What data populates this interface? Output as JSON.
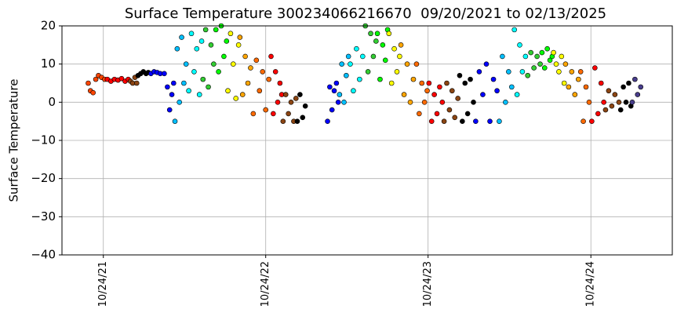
{
  "chart_data": {
    "type": "scatter",
    "title": "Surface Temperature 300234066216670  09/20/2021 to 02/13/2025",
    "y_label": "Surface Temperature",
    "xlim": [
      "2021-07-23",
      "2025-04-25"
    ],
    "xticks": [
      {
        "value": "2021-10-24",
        "label": "10/24/21"
      },
      {
        "value": "2022-10-24",
        "label": "10/24/22"
      },
      {
        "value": "2023-10-24",
        "label": "10/24/23"
      },
      {
        "value": "2024-10-24",
        "label": "10/24/24"
      }
    ],
    "ylim": [
      -40,
      20
    ],
    "yticks": [
      {
        "value": -40,
        "label": "−40"
      },
      {
        "value": -30,
        "label": "−30"
      },
      {
        "value": -20,
        "label": "−20"
      },
      {
        "value": -10,
        "label": "−10"
      },
      0,
      10,
      20
    ],
    "grid": true,
    "series": [
      {
        "color": "#ff4500",
        "x": [
          "2021-09-20",
          "2021-09-25",
          "2021-10-01",
          "2021-10-07",
          "2021-10-13",
          "2021-10-20",
          "2021-10-27"
        ],
        "values": [
          5,
          3,
          2.5,
          6,
          7,
          6.5,
          6
        ]
      },
      {
        "color": "#ff0000",
        "x": [
          "2021-11-02",
          "2021-11-10",
          "2021-11-18",
          "2021-11-26",
          "2021-12-04",
          "2021-12-12",
          "2021-12-19"
        ],
        "values": [
          6,
          5.5,
          6,
          5.8,
          6.2,
          5.5,
          6
        ]
      },
      {
        "color": "#8b4513",
        "x": [
          "2021-12-24",
          "2021-12-29",
          "2022-01-03",
          "2022-01-07"
        ],
        "values": [
          5.5,
          5,
          6.5,
          5
        ]
      },
      {
        "color": "#000000",
        "x": [
          "2022-01-10",
          "2022-01-16",
          "2022-01-22",
          "2022-01-28",
          "2022-02-02"
        ],
        "values": [
          7,
          7.5,
          8,
          7.5,
          7.8
        ]
      },
      {
        "color": "#0000ff",
        "x": [
          "2022-02-08",
          "2022-02-15",
          "2022-02-22",
          "2022-03-01",
          "2022-03-10",
          "2022-03-17",
          "2022-03-22",
          "2022-03-27",
          "2022-03-31"
        ],
        "values": [
          7.5,
          8,
          7.8,
          7.5,
          7.5,
          4,
          -2,
          2,
          5
        ]
      },
      {
        "color": "#00bfff",
        "x": [
          "2022-04-03",
          "2022-04-08",
          "2022-04-13",
          "2022-04-18",
          "2022-04-23",
          "2022-04-28"
        ],
        "values": [
          -5,
          14,
          0,
          17,
          5,
          10
        ]
      },
      {
        "color": "#00ffff",
        "x": [
          "2022-05-04",
          "2022-05-10",
          "2022-05-16",
          "2022-05-22",
          "2022-05-28",
          "2022-06-02"
        ],
        "values": [
          3,
          18,
          8,
          14,
          2,
          16
        ]
      },
      {
        "color": "#32cd32",
        "x": [
          "2022-06-05",
          "2022-06-11",
          "2022-06-17",
          "2022-06-23",
          "2022-06-29"
        ],
        "values": [
          6,
          19,
          4,
          15,
          10
        ]
      },
      {
        "color": "#00ff00",
        "x": [
          "2022-07-04",
          "2022-07-10",
          "2022-07-16",
          "2022-07-22",
          "2022-07-28"
        ],
        "values": [
          19,
          8,
          20,
          12,
          16
        ]
      },
      {
        "color": "#ffff00",
        "x": [
          "2022-07-31",
          "2022-08-06",
          "2022-08-12",
          "2022-08-18",
          "2022-08-24"
        ],
        "values": [
          3,
          18,
          10,
          1,
          15
        ]
      },
      {
        "color": "#ffa500",
        "x": [
          "2022-08-27",
          "2022-09-02",
          "2022-09-08",
          "2022-09-14",
          "2022-09-20"
        ],
        "values": [
          17,
          2,
          12,
          5,
          9
        ]
      },
      {
        "color": "#ff6a00",
        "x": [
          "2022-09-26",
          "2022-10-03",
          "2022-10-10",
          "2022-10-17",
          "2022-10-24",
          "2022-10-31"
        ],
        "values": [
          -3,
          11,
          3,
          8,
          -2,
          6
        ]
      },
      {
        "color": "#ff0000",
        "x": [
          "2022-11-05",
          "2022-11-10",
          "2022-11-15",
          "2022-11-20",
          "2022-11-25",
          "2022-11-29"
        ],
        "values": [
          12,
          -3,
          8,
          0,
          5,
          2
        ]
      },
      {
        "color": "#8b4513",
        "x": [
          "2022-12-02",
          "2022-12-08",
          "2022-12-14",
          "2022-12-20",
          "2022-12-26",
          "2022-12-31"
        ],
        "values": [
          -5,
          2,
          -3,
          0,
          -5,
          1
        ]
      },
      {
        "color": "#000000",
        "x": [
          "2023-01-03",
          "2023-01-09",
          "2023-01-15",
          "2023-01-21"
        ],
        "values": [
          -5,
          2,
          -4,
          -1
        ]
      },
      {
        "color": "#0000ff",
        "x": [
          "2023-03-12",
          "2023-03-17",
          "2023-03-22",
          "2023-03-27",
          "2023-04-01",
          "2023-04-05"
        ],
        "values": [
          -5,
          4,
          -2,
          3,
          5,
          0
        ]
      },
      {
        "color": "#00bfff",
        "x": [
          "2023-04-08",
          "2023-04-13",
          "2023-04-18",
          "2023-04-23",
          "2023-04-28"
        ],
        "values": [
          2,
          10,
          0,
          7,
          12
        ]
      },
      {
        "color": "#00ffff",
        "x": [
          "2023-05-02",
          "2023-05-09",
          "2023-05-16",
          "2023-05-23",
          "2023-05-30"
        ],
        "values": [
          10,
          3,
          14,
          6,
          12
        ]
      },
      {
        "color": "#32cd32",
        "x": [
          "2023-06-05",
          "2023-06-11",
          "2023-06-17",
          "2023-06-23",
          "2023-06-29"
        ],
        "values": [
          20,
          8,
          18,
          12,
          16
        ]
      },
      {
        "color": "#00ff00",
        "x": [
          "2023-07-02",
          "2023-07-08",
          "2023-07-14",
          "2023-07-20",
          "2023-07-25"
        ],
        "values": [
          18,
          6,
          15,
          11,
          19
        ]
      },
      {
        "color": "#ffff00",
        "x": [
          "2023-07-28",
          "2023-08-03",
          "2023-08-09",
          "2023-08-15",
          "2023-08-21"
        ],
        "values": [
          18,
          5,
          14,
          8,
          12
        ]
      },
      {
        "color": "#ffa500",
        "x": [
          "2023-08-24",
          "2023-08-31",
          "2023-09-07",
          "2023-09-14",
          "2023-09-21"
        ],
        "values": [
          15,
          2,
          10,
          0,
          6
        ]
      },
      {
        "color": "#ff6a00",
        "x": [
          "2023-09-28",
          "2023-10-04",
          "2023-10-10",
          "2023-10-16",
          "2023-10-22"
        ],
        "values": [
          10,
          -3,
          5,
          0,
          3
        ]
      },
      {
        "color": "#ff0000",
        "x": [
          "2023-10-26",
          "2023-11-01",
          "2023-11-07",
          "2023-11-13",
          "2023-11-19",
          "2023-11-25"
        ],
        "values": [
          5,
          -5,
          2,
          -3,
          4,
          0
        ]
      },
      {
        "color": "#8b4513",
        "x": [
          "2023-11-29",
          "2023-12-05",
          "2023-12-11",
          "2023-12-17",
          "2023-12-23",
          "2023-12-30"
        ],
        "values": [
          -5,
          5,
          -2,
          3,
          -4,
          1
        ]
      },
      {
        "color": "#000000",
        "x": [
          "2024-01-03",
          "2024-01-09",
          "2024-01-15",
          "2024-01-21",
          "2024-01-27",
          "2024-02-03"
        ],
        "values": [
          7,
          -5,
          5,
          -3,
          6,
          0
        ]
      },
      {
        "color": "#0000ff",
        "x": [
          "2024-02-08",
          "2024-02-16",
          "2024-02-24",
          "2024-03-03",
          "2024-03-11",
          "2024-03-19",
          "2024-03-27"
        ],
        "values": [
          -5,
          8,
          2,
          10,
          -5,
          6,
          3
        ]
      },
      {
        "color": "#00bfff",
        "x": [
          "2024-04-01",
          "2024-04-08",
          "2024-04-15",
          "2024-04-22",
          "2024-04-29"
        ],
        "values": [
          -5,
          12,
          0,
          8,
          4
        ]
      },
      {
        "color": "#00ffff",
        "x": [
          "2024-05-05",
          "2024-05-11",
          "2024-05-17",
          "2024-05-23",
          "2024-05-30"
        ],
        "values": [
          19,
          2,
          15,
          8,
          12
        ]
      },
      {
        "color": "#32cd32",
        "x": [
          "2024-06-04",
          "2024-06-11",
          "2024-06-18",
          "2024-06-25",
          "2024-07-02"
        ],
        "values": [
          7,
          13,
          9,
          12,
          10
        ]
      },
      {
        "color": "#00ff00",
        "x": [
          "2024-07-06",
          "2024-07-12",
          "2024-07-18",
          "2024-07-24",
          "2024-07-29"
        ],
        "values": [
          13,
          9,
          14,
          11,
          12
        ]
      },
      {
        "color": "#ffff00",
        "x": [
          "2024-08-01",
          "2024-08-07",
          "2024-08-13",
          "2024-08-19",
          "2024-08-25"
        ],
        "values": [
          13,
          10,
          8,
          12,
          5
        ]
      },
      {
        "color": "#ffa500",
        "x": [
          "2024-08-28",
          "2024-09-04",
          "2024-09-11",
          "2024-09-18",
          "2024-09-26"
        ],
        "values": [
          10,
          4,
          8,
          2,
          6
        ]
      },
      {
        "color": "#ff6a00",
        "x": [
          "2024-10-01",
          "2024-10-07",
          "2024-10-13",
          "2024-10-20"
        ],
        "values": [
          8,
          -5,
          4,
          0
        ]
      },
      {
        "color": "#ff0000",
        "x": [
          "2024-10-26",
          "2024-11-02",
          "2024-11-09",
          "2024-11-16",
          "2024-11-22"
        ],
        "values": [
          -5,
          9,
          -3,
          5,
          0
        ]
      },
      {
        "color": "#8b4513",
        "x": [
          "2024-11-26",
          "2024-12-03",
          "2024-12-10",
          "2024-12-17",
          "2024-12-26"
        ],
        "values": [
          -2,
          3,
          -1,
          2,
          0
        ]
      },
      {
        "color": "#000000",
        "x": [
          "2024-12-30",
          "2025-01-05",
          "2025-01-11",
          "2025-01-17",
          "2025-01-22"
        ],
        "values": [
          -2,
          4,
          0,
          5,
          -1
        ]
      },
      {
        "color": "#483d8b",
        "x": [
          "2025-01-25",
          "2025-01-31",
          "2025-02-06",
          "2025-02-13"
        ],
        "values": [
          0,
          6,
          2,
          4
        ]
      }
    ]
  }
}
